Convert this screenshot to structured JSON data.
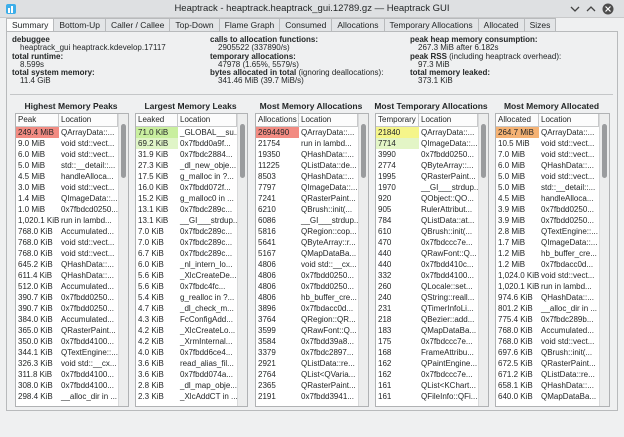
{
  "window": {
    "title": "Heaptrack - heaptrack.heaptrack_gui.12789.gz — Heaptrack GUI"
  },
  "tabs": [
    "Summary",
    "Bottom-Up",
    "Caller / Callee",
    "Top-Down",
    "Flame Graph",
    "Consumed",
    "Allocations",
    "Temporary Allocations",
    "Allocated",
    "Sizes"
  ],
  "active_tab": 0,
  "summary": [
    [
      {
        "label": "debuggee",
        "value": "heaptrack_gui heaptrack.kdevelop.17117"
      },
      {
        "label": "total runtime:",
        "value": "8.599s"
      },
      {
        "label": "total system memory:",
        "value": "11.4 GiB"
      }
    ],
    [
      {
        "label": "calls to allocation functions:",
        "value": "2905522 (337890/s)"
      },
      {
        "label": "temporary allocations:",
        "value": "47978 (1.65%, 5579/s)"
      },
      {
        "label": "bytes allocated in total",
        "detail": "(ignoring deallocations):",
        "value": "341.46 MiB (39.7 MiB/s)"
      }
    ],
    [
      {
        "label": "peak heap memory consumption:",
        "value": "267.3 MiB after 6.182s"
      },
      {
        "label": "peak RSS",
        "detail": "(including heaptrack overhead):",
        "value": "97.3 MiB"
      },
      {
        "label": "total memory leaked:",
        "value": "373.1 KiB"
      }
    ]
  ],
  "tables": [
    {
      "title": "Highest Memory Peaks",
      "columns": [
        "Peak",
        "Location"
      ],
      "highlights": [
        "#f28b82"
      ],
      "rows": [
        [
          "249.4 MiB",
          "QArrayData::..."
        ],
        [
          "9.0 MiB",
          "void std::vect..."
        ],
        [
          "6.0 MiB",
          "void std::vect..."
        ],
        [
          "5.0 MiB",
          "std::__detail::..."
        ],
        [
          "4.5 MiB",
          "handleAlloca..."
        ],
        [
          "3.0 MiB",
          "void std::vect..."
        ],
        [
          "1.4 MiB",
          "QImageData::..."
        ],
        [
          "1.0 MiB",
          "0x7fbdcd0250..."
        ],
        [
          "1,020.1 KiB",
          "run in lambd..."
        ],
        [
          "768.0 KiB",
          "Accumulated..."
        ],
        [
          "768.0 KiB",
          "void std::vect..."
        ],
        [
          "768.0 KiB",
          "void std::vect..."
        ],
        [
          "645.2 KiB",
          "QHashData::..."
        ],
        [
          "611.4 KiB",
          "QHashData::..."
        ],
        [
          "512.0 KiB",
          "Accumulated..."
        ],
        [
          "390.7 KiB",
          "0x7fbdd0250..."
        ],
        [
          "390.7 KiB",
          "0x7fbdd0250..."
        ],
        [
          "384.0 KiB",
          "Accumulated..."
        ],
        [
          "365.0 KiB",
          "QRasterPaint..."
        ],
        [
          "350.0 KiB",
          "0x7fbdd4100..."
        ],
        [
          "344.1 KiB",
          "QTextEngine::..."
        ],
        [
          "326.3 KiB",
          "void std::__cx..."
        ],
        [
          "311.8 KiB",
          "0x7fbdd4100..."
        ],
        [
          "308.0 KiB",
          "0x7fbdd4100..."
        ],
        [
          "298.4 KiB",
          "__alloc_dir in ..."
        ]
      ]
    },
    {
      "title": "Largest Memory Leaks",
      "columns": [
        "Leaked",
        "Location"
      ],
      "highlights": [
        "#c9ef9f",
        "#e0f5c8"
      ],
      "rows": [
        [
          "71.0 KiB",
          "_GLOBAL__su..."
        ],
        [
          "69.2 KiB",
          "0x7fbdd0a9f..."
        ],
        [
          "31.9 KiB",
          "0x7fbdc2884..."
        ],
        [
          "27.3 KiB",
          "_dl_new_obje..."
        ],
        [
          "17.5 KiB",
          "g_malloc in ?..."
        ],
        [
          "16.0 KiB",
          "0x7fbdd072f..."
        ],
        [
          "15.2 KiB",
          "g_malloc0 in ..."
        ],
        [
          "13.1 KiB",
          "0x7fbdc289c..."
        ],
        [
          "13.1 KiB",
          "__GI___strdup..."
        ],
        [
          "7.0 KiB",
          "0x7fbdc289c..."
        ],
        [
          "7.0 KiB",
          "0x7fbdc289c..."
        ],
        [
          "6.7 KiB",
          "0x7fbdc289c..."
        ],
        [
          "6.0 KiB",
          "_nl_intern_lo..."
        ],
        [
          "5.6 KiB",
          "_XlcCreateDe..."
        ],
        [
          "5.6 KiB",
          "0x7fbdc4fc..."
        ],
        [
          "5.4 KiB",
          "g_realloc in ?..."
        ],
        [
          "4.7 KiB",
          "_dl_check_m..."
        ],
        [
          "4.3 KiB",
          "FcConfigAdd..."
        ],
        [
          "4.2 KiB",
          "_XlcCreateLo..."
        ],
        [
          "4.2 KiB",
          "_XrmInternal..."
        ],
        [
          "4.0 KiB",
          "0x7fbdd6ce4..."
        ],
        [
          "3.6 KiB",
          "read_alias_fil..."
        ],
        [
          "3.6 KiB",
          "0x7fbdd074a..."
        ],
        [
          "2.8 KiB",
          "_dl_map_obje..."
        ],
        [
          "2.3 KiB",
          "_XlcAddCT in ..."
        ]
      ]
    },
    {
      "title": "Most Memory Allocations",
      "columns": [
        "Allocations",
        "Location"
      ],
      "highlights": [
        "#f28b82"
      ],
      "rows": [
        [
          "2694490",
          "QArrayData::..."
        ],
        [
          "21754",
          "run in lambd..."
        ],
        [
          "19350",
          "QHashData::..."
        ],
        [
          "11225",
          "QListData::de..."
        ],
        [
          "8503",
          "QHashData::..."
        ],
        [
          "7797",
          "QImageData::..."
        ],
        [
          "7241",
          "QRasterPaint..."
        ],
        [
          "6210",
          "QBrush::init(..."
        ],
        [
          "6086",
          "__GI___strdup..."
        ],
        [
          "5816",
          "QRegion::cop..."
        ],
        [
          "5641",
          "QByteArray::r..."
        ],
        [
          "5167",
          "QMapDataBa..."
        ],
        [
          "4806",
          "void std::__cx..."
        ],
        [
          "4806",
          "0x7fbdd0250..."
        ],
        [
          "4806",
          "0x7fbdd0250..."
        ],
        [
          "4806",
          "hb_buffer_cre..."
        ],
        [
          "3896",
          "0x7fbdacc0d..."
        ],
        [
          "3764",
          "QRegion::QR..."
        ],
        [
          "3599",
          "QRawFont::Q..."
        ],
        [
          "3584",
          "0x7fbdd39a8..."
        ],
        [
          "3379",
          "0x7fbdc2897..."
        ],
        [
          "2921",
          "QListData::re..."
        ],
        [
          "2764",
          "QList<QVaria..."
        ],
        [
          "2365",
          "QRasterPaint..."
        ],
        [
          "2191",
          "0x7fbdd3941..."
        ]
      ]
    },
    {
      "title": "Most Temporary Allocations",
      "columns": [
        "Temporary",
        "Location"
      ],
      "highlights": [
        "#f5f58a",
        "#e3f5c6"
      ],
      "rows": [
        [
          "21840",
          "QArrayData::..."
        ],
        [
          "7714",
          "QImageData::..."
        ],
        [
          "3990",
          "0x7fbdd0250..."
        ],
        [
          "2774",
          "QByteArray::..."
        ],
        [
          "1995",
          "QRasterPaint..."
        ],
        [
          "1970",
          "__GI___strdup..."
        ],
        [
          "920",
          "QObject::QO..."
        ],
        [
          "905",
          "RulerAttribut..."
        ],
        [
          "784",
          "QListData::at..."
        ],
        [
          "610",
          "QBrush::init(..."
        ],
        [
          "470",
          "0x7fbdccc7e..."
        ],
        [
          "440",
          "QRawFont::Q..."
        ],
        [
          "440",
          "0x7fbdd410c..."
        ],
        [
          "332",
          "0x7fbdd4100..."
        ],
        [
          "260",
          "QLocale::set..."
        ],
        [
          "240",
          "QString::reall..."
        ],
        [
          "231",
          "QTimerInfoLi..."
        ],
        [
          "218",
          "QBezier::add..."
        ],
        [
          "183",
          "QMapDataBa..."
        ],
        [
          "175",
          "0x7fbdccc7e..."
        ],
        [
          "168",
          "FrameAttribu..."
        ],
        [
          "162",
          "QPaintEngine..."
        ],
        [
          "162",
          "0x7fbdccc7e..."
        ],
        [
          "161",
          "QList<KChart..."
        ],
        [
          "161",
          "QFileInfo::QFi..."
        ]
      ]
    },
    {
      "title": "Most Memory Allocated",
      "columns": [
        "Allocated",
        "Location"
      ],
      "highlights": [
        "#f5b274"
      ],
      "rows": [
        [
          "264.7 MiB",
          "QArrayData::..."
        ],
        [
          "10.5 MiB",
          "void std::vect..."
        ],
        [
          "7.0 MiB",
          "void std::vect..."
        ],
        [
          "6.0 MiB",
          "QHashData::..."
        ],
        [
          "5.0 MiB",
          "void std::vect..."
        ],
        [
          "5.0 MiB",
          "std::__detail::..."
        ],
        [
          "4.5 MiB",
          "handleAlloca..."
        ],
        [
          "3.9 MiB",
          "0x7fbdd0250..."
        ],
        [
          "3.9 MiB",
          "0x7fbdd0250..."
        ],
        [
          "2.8 MiB",
          "QTextEngine::..."
        ],
        [
          "1.7 MiB",
          "QImageData::..."
        ],
        [
          "1.2 MiB",
          "hb_buffer_cre..."
        ],
        [
          "1.2 MiB",
          "0x7fbdacc0d..."
        ],
        [
          "1,024.0 KiB",
          "void std::vect..."
        ],
        [
          "1,020.1 KiB",
          "run in lambd..."
        ],
        [
          "974.6 KiB",
          "QHashData::..."
        ],
        [
          "801.2 KiB",
          "__alloc_dir in ..."
        ],
        [
          "775.4 KiB",
          "0x7fbdc289b..."
        ],
        [
          "768.0 KiB",
          "Accumulated..."
        ],
        [
          "768.0 KiB",
          "void std::vect..."
        ],
        [
          "697.6 KiB",
          "QBrush::init(..."
        ],
        [
          "672.5 KiB",
          "QRasterPaint..."
        ],
        [
          "671.2 KiB",
          "QListData::re..."
        ],
        [
          "658.1 KiB",
          "QHashData::..."
        ],
        [
          "640.0 KiB",
          "QMapDataBa..."
        ]
      ]
    }
  ]
}
